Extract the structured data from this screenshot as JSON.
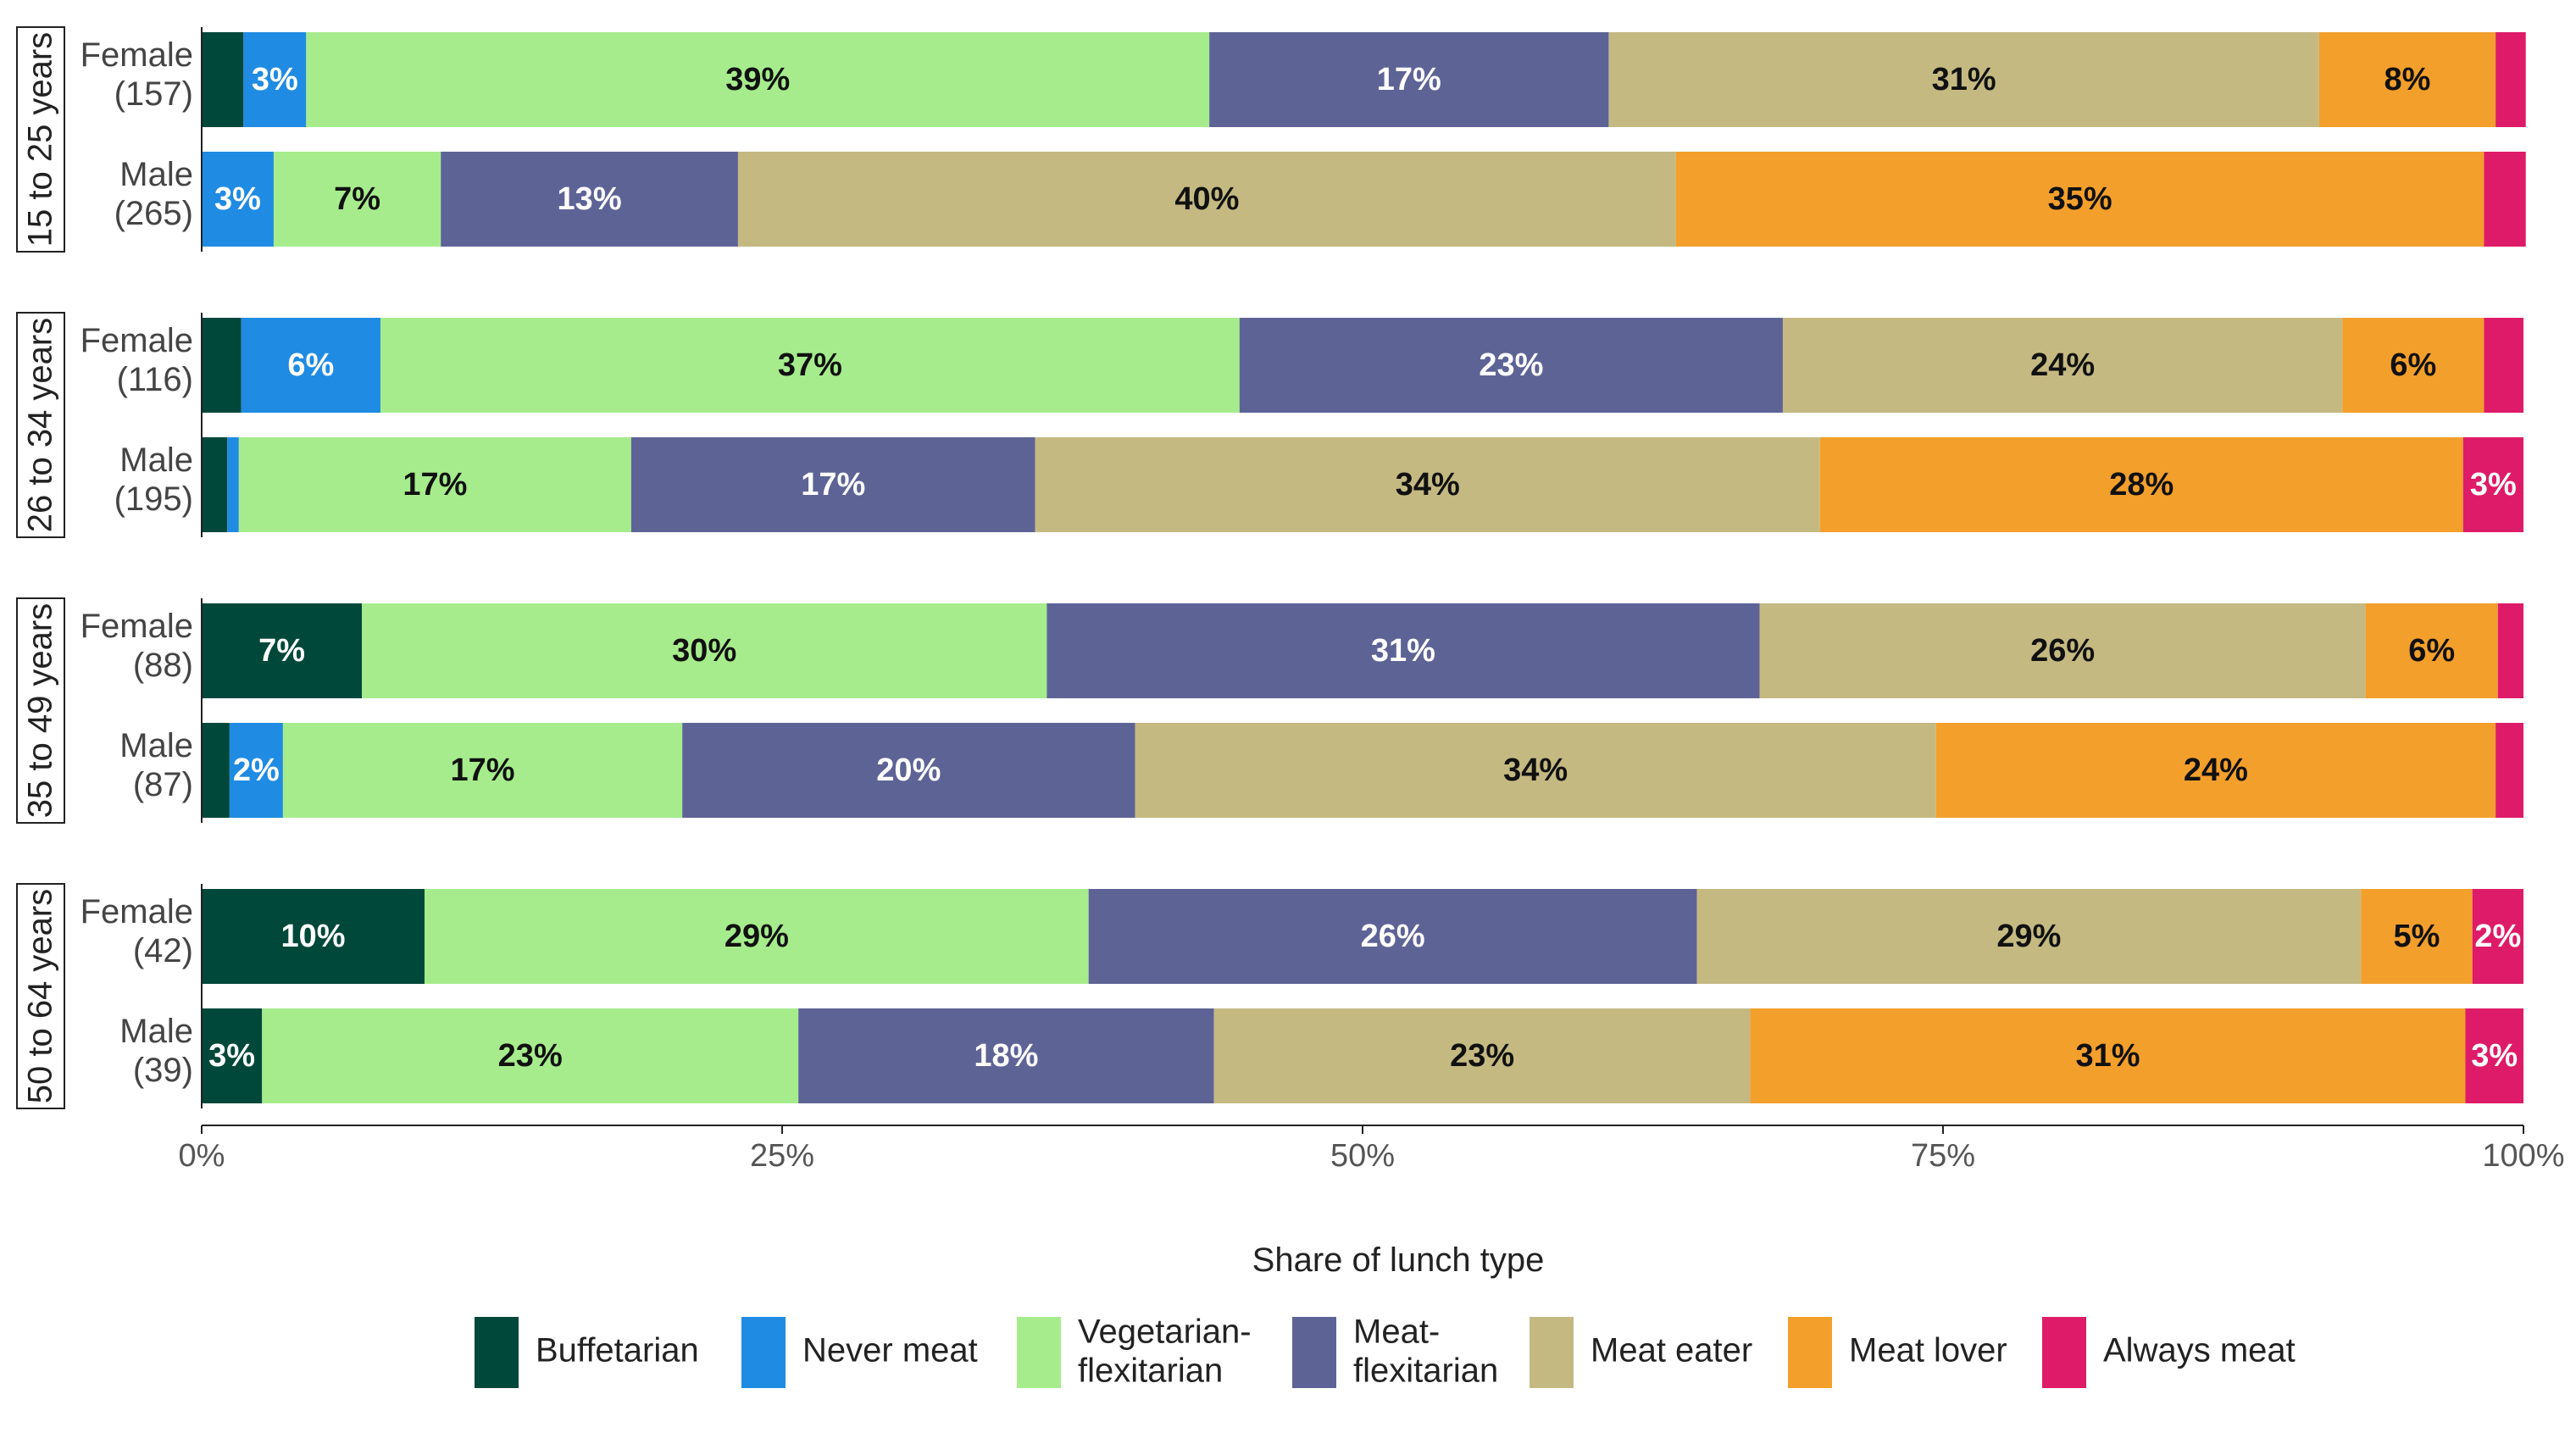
{
  "chart_data": {
    "type": "bar",
    "orientation": "horizontal",
    "stacked": true,
    "percent": true,
    "title": "",
    "xlabel": "Share of lunch type",
    "ylabel": "",
    "xlim": [
      0,
      100
    ],
    "x_ticks": [
      0,
      25,
      50,
      75,
      100
    ],
    "x_tick_labels": [
      "0%",
      "25%",
      "50%",
      "75%",
      "100%"
    ],
    "legend_position": "bottom",
    "series_names": [
      "Buffetarian",
      "Never meat",
      "Vegetarian-flexitarian",
      "Meat-flexitarian",
      "Meat eater",
      "Meat lover",
      "Always meat"
    ],
    "legend_labels": [
      [
        "Buffetarian"
      ],
      [
        "Never meat"
      ],
      [
        "Vegetarian-",
        "flexitarian"
      ],
      [
        "Meat-",
        "flexitarian"
      ],
      [
        "Meat eater"
      ],
      [
        "Meat lover"
      ],
      [
        "Always meat"
      ]
    ],
    "colors": [
      "#00483a",
      "#1f8be2",
      "#a6ec8c",
      "#5e6396",
      "#c5b982",
      "#f39f2c",
      "#de1b68"
    ],
    "label_colors": [
      "#ffffff",
      "#ffffff",
      "#111111",
      "#ffffff",
      "#111111",
      "#111111",
      "#ffffff"
    ],
    "facets": [
      {
        "label": "15 to 25 years",
        "rows": [
          {
            "name": "Female",
            "n": "(157)",
            "values": [
              1.8,
              2.7,
              38.9,
              17.2,
              30.6,
              7.6,
              1.3
            ],
            "labels": [
              "",
              "3%",
              "39%",
              "17%",
              "31%",
              "8%",
              ""
            ]
          },
          {
            "name": "Male",
            "n": "(265)",
            "values": [
              0,
              3.1,
              7.2,
              12.8,
              40.4,
              34.8,
              1.8
            ],
            "labels": [
              "",
              "3%",
              "7%",
              "13%",
              "40%",
              "35%",
              ""
            ]
          }
        ]
      },
      {
        "label": "26 to 34 years",
        "rows": [
          {
            "name": "Female",
            "n": "(116)",
            "values": [
              1.7,
              6.0,
              37.0,
              23.4,
              24.1,
              6.1,
              1.7
            ],
            "labels": [
              "",
              "6%",
              "37%",
              "23%",
              "24%",
              "6%",
              ""
            ]
          },
          {
            "name": "Male",
            "n": "(195)",
            "values": [
              1.1,
              0.5,
              16.9,
              17.4,
              33.8,
              27.7,
              2.6
            ],
            "labels": [
              "",
              "",
              "17%",
              "17%",
              "34%",
              "28%",
              "3%"
            ]
          }
        ]
      },
      {
        "label": "35 to 49 years",
        "rows": [
          {
            "name": "Female",
            "n": "(88)",
            "values": [
              6.9,
              0,
              29.5,
              30.7,
              26.1,
              5.7,
              1.1
            ],
            "labels": [
              "7%",
              "",
              "30%",
              "31%",
              "26%",
              "6%",
              ""
            ]
          },
          {
            "name": "Male",
            "n": "(87)",
            "values": [
              1.2,
              2.3,
              17.2,
              19.5,
              34.5,
              24.1,
              1.2
            ],
            "labels": [
              "",
              "2%",
              "17%",
              "20%",
              "34%",
              "24%",
              ""
            ]
          }
        ]
      },
      {
        "label": "50 to 64 years",
        "rows": [
          {
            "name": "Female",
            "n": "(42)",
            "values": [
              9.6,
              0,
              28.6,
              26.2,
              28.6,
              4.8,
              2.2
            ],
            "labels": [
              "10%",
              "",
              "29%",
              "26%",
              "29%",
              "5%",
              "2%"
            ]
          },
          {
            "name": "Male",
            "n": "(39)",
            "values": [
              2.6,
              0,
              23.1,
              17.9,
              23.1,
              30.8,
              2.5
            ],
            "labels": [
              "3%",
              "",
              "23%",
              "18%",
              "23%",
              "31%",
              "3%"
            ]
          }
        ]
      }
    ]
  }
}
